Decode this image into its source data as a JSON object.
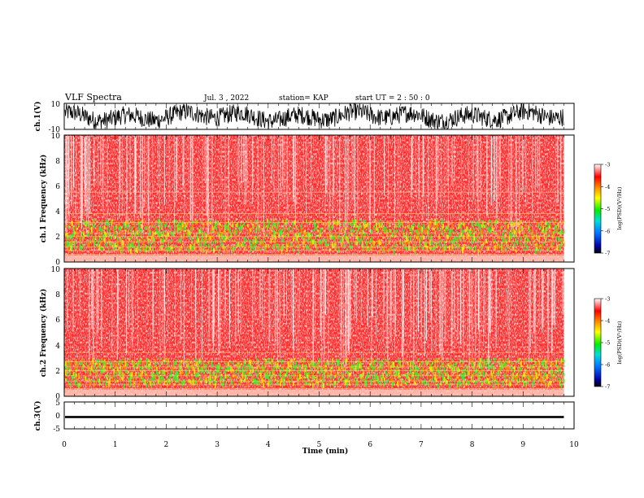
{
  "header": {
    "title": "VLF Spectra",
    "date": "Jul. 3 , 2022",
    "station": "station= KAP",
    "start": "start UT =  2 : 50 : 0"
  },
  "colors": {
    "spectrogram_base": "#ff2a2a",
    "band_green": "#33ee33",
    "band_yellow": "#ffee00",
    "trace": "#000000"
  },
  "chart_data": [
    {
      "type": "line",
      "name": "ch1-waveform",
      "ylabel": "ch.1(V)",
      "ylim": [
        -10,
        10
      ],
      "yticks": [
        "10",
        "-10"
      ],
      "xlim": [
        0,
        10
      ],
      "note_shape": "dense oscillation, mostly between -8 and 8 V"
    },
    {
      "type": "heatmap",
      "name": "ch1-spectrogram",
      "ylabel": "ch.1 Frequency (kHz)",
      "ylim": [
        0,
        10
      ],
      "yticks": [
        "10",
        "8",
        "6",
        "4",
        "2",
        "0"
      ],
      "xlim": [
        0,
        10
      ],
      "data_end_min": 9.8,
      "bands_khz": {
        "green_yellow": [
          1.0,
          3.4
        ],
        "enhanced_line": 5.5
      },
      "colorbar": {
        "label": "log(PSD)(V²/Hz)",
        "ticks": [
          "-3",
          "-4",
          "-5",
          "-6",
          "-7"
        ],
        "range": [
          -7,
          -3
        ]
      }
    },
    {
      "type": "heatmap",
      "name": "ch2-spectrogram",
      "ylabel": "ch.2 Frequency (kHz)",
      "ylim": [
        0,
        10
      ],
      "yticks": [
        "10",
        "8",
        "6",
        "4",
        "2",
        "0"
      ],
      "xlim": [
        0,
        10
      ],
      "data_end_min": 9.8,
      "bands_khz": {
        "green_yellow": [
          1.0,
          3.0
        ]
      },
      "colorbar": {
        "label": "log(PSD)(V²/Hz)",
        "ticks": [
          "-3",
          "-4",
          "-5",
          "-6",
          "-7"
        ],
        "range": [
          -7,
          -3
        ]
      }
    },
    {
      "type": "line",
      "name": "ch3-waveform",
      "ylabel": "ch.3(V)",
      "ylim": [
        -5,
        5
      ],
      "yticks": [
        "5",
        "0",
        "-5"
      ],
      "xlim": [
        0,
        10
      ],
      "note_shape": "near-constant thin band around -0.5 V"
    }
  ],
  "xaxis": {
    "label": "Time (min)",
    "ticks": [
      "0",
      "1",
      "2",
      "3",
      "4",
      "5",
      "6",
      "7",
      "8",
      "9",
      "10"
    ]
  }
}
